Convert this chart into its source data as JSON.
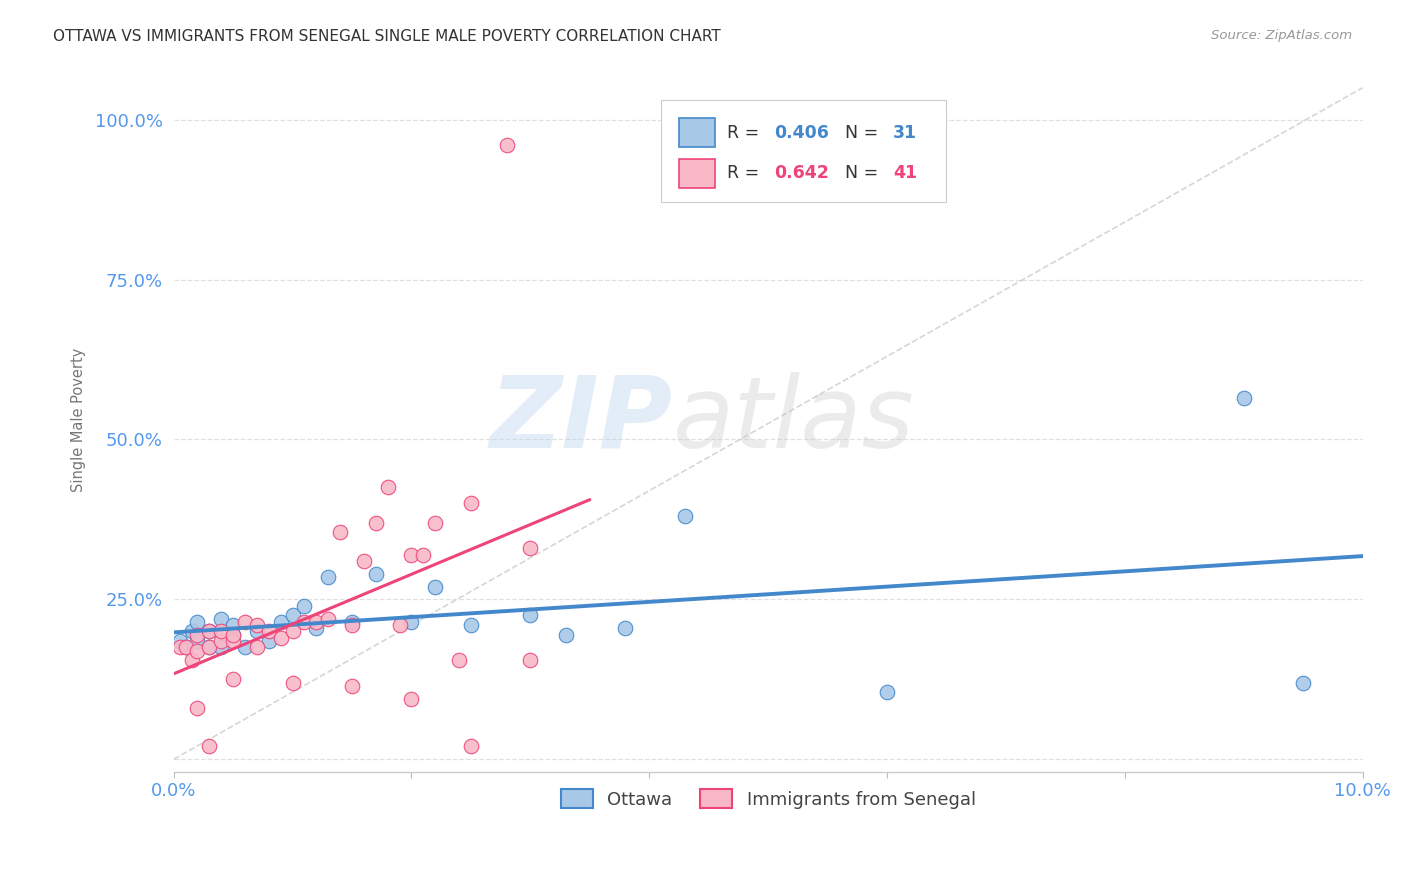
{
  "title": "OTTAWA VS IMMIGRANTS FROM SENEGAL SINGLE MALE POVERTY CORRELATION CHART",
  "source": "Source: ZipAtlas.com",
  "ylabel": "Single Male Poverty",
  "xlim": [
    0.0,
    0.1
  ],
  "ylim": [
    -0.02,
    1.08
  ],
  "xticks": [
    0.0,
    0.02,
    0.04,
    0.06,
    0.08,
    0.1
  ],
  "xtick_labels": [
    "0.0%",
    "",
    "",
    "",
    "",
    "10.0%"
  ],
  "yticks": [
    0.0,
    0.25,
    0.5,
    0.75,
    1.0
  ],
  "ytick_labels": [
    "",
    "25.0%",
    "50.0%",
    "75.0%",
    "100.0%"
  ],
  "ottawa_color": "#a8c8e8",
  "senegal_color": "#f8b8c8",
  "ottawa_line_color": "#4488cc",
  "senegal_line_color": "#ee4477",
  "ottawa_R": 0.406,
  "ottawa_N": 31,
  "senegal_R": 0.642,
  "senegal_N": 41,
  "legend_label_1": "Ottawa",
  "legend_label_2": "Immigrants from Senegal",
  "watermark_zip": "ZIP",
  "watermark_atlas": "atlas",
  "grid_color": "#dddddd",
  "background_color": "#ffffff",
  "axis_label_color": "#5599ee",
  "title_color": "#333333",
  "ottawa_x": [
    0.0005,
    0.001,
    0.0015,
    0.002,
    0.002,
    0.003,
    0.003,
    0.004,
    0.004,
    0.005,
    0.005,
    0.006,
    0.007,
    0.008,
    0.009,
    0.01,
    0.011,
    0.012,
    0.013,
    0.015,
    0.017,
    0.02,
    0.022,
    0.025,
    0.03,
    0.033,
    0.038,
    0.043,
    0.06,
    0.09,
    0.095
  ],
  "ottawa_y": [
    0.185,
    0.175,
    0.2,
    0.185,
    0.215,
    0.175,
    0.2,
    0.175,
    0.22,
    0.195,
    0.21,
    0.175,
    0.2,
    0.185,
    0.215,
    0.225,
    0.24,
    0.205,
    0.285,
    0.215,
    0.29,
    0.215,
    0.27,
    0.21,
    0.225,
    0.195,
    0.205,
    0.38,
    0.105,
    0.565,
    0.12
  ],
  "senegal_x": [
    0.0005,
    0.001,
    0.0015,
    0.002,
    0.002,
    0.003,
    0.003,
    0.004,
    0.004,
    0.005,
    0.005,
    0.006,
    0.007,
    0.007,
    0.008,
    0.009,
    0.01,
    0.011,
    0.012,
    0.013,
    0.014,
    0.015,
    0.016,
    0.017,
    0.018,
    0.019,
    0.02,
    0.021,
    0.022,
    0.024,
    0.025,
    0.03,
    0.03,
    0.002,
    0.003,
    0.005,
    0.01,
    0.015,
    0.02,
    0.025,
    0.028
  ],
  "senegal_y": [
    0.175,
    0.175,
    0.155,
    0.195,
    0.17,
    0.175,
    0.2,
    0.185,
    0.2,
    0.185,
    0.195,
    0.215,
    0.175,
    0.21,
    0.2,
    0.19,
    0.2,
    0.215,
    0.215,
    0.22,
    0.355,
    0.21,
    0.31,
    0.37,
    0.425,
    0.21,
    0.32,
    0.32,
    0.37,
    0.155,
    0.4,
    0.155,
    0.33,
    0.08,
    0.02,
    0.125,
    0.12,
    0.115,
    0.095,
    0.02,
    0.96
  ]
}
